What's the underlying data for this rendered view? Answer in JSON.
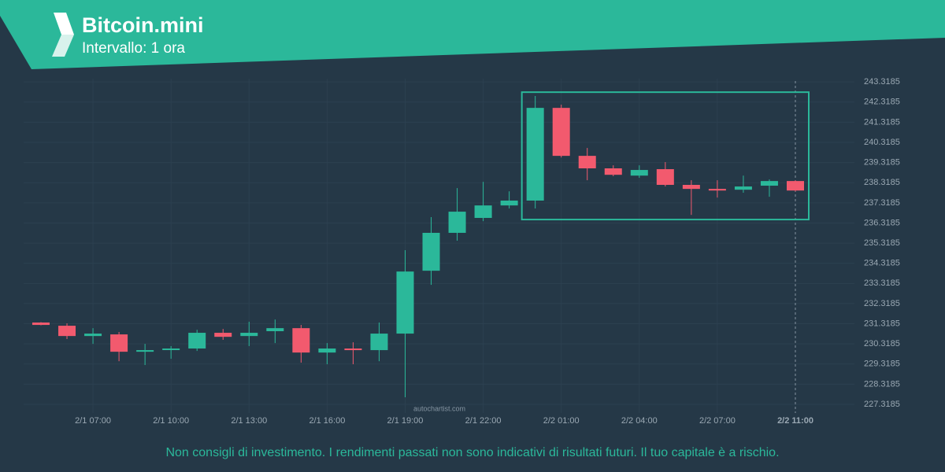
{
  "chart_data": {
    "type": "candlestick",
    "title": "Bitcoin.mini",
    "subtitle": "Intervallo: 1 ora",
    "watermark": "autochartist.com",
    "disclaimer": "Non consigli di investimento. I rendimenti passati non sono indicativi di risultati futuri. Il tuo capitale è a rischio.",
    "categories": [
      null,
      null,
      "2/1 07:00",
      null,
      null,
      "2/1 10:00",
      null,
      null,
      "2/1 13:00",
      null,
      null,
      "2/1 16:00",
      null,
      null,
      "2/1 19:00",
      null,
      null,
      "2/1 22:00",
      null,
      null,
      "2/2 01:00",
      null,
      null,
      "2/2 04:00",
      null,
      null,
      "2/2 07:00",
      null,
      null,
      "2/2 11:00"
    ],
    "open": [
      231.38,
      231.22,
      230.71,
      230.79,
      229.93,
      230.05,
      230.09,
      230.87,
      230.71,
      230.95,
      231.1,
      229.89,
      230.09,
      230.01,
      230.83,
      233.95,
      235.83,
      236.57,
      237.19,
      237.43,
      242.03,
      239.65,
      239.03,
      238.67,
      238.99,
      238.21,
      238.01,
      237.97,
      238.17,
      238.4
    ],
    "high": [
      231.4,
      231.34,
      231.1,
      230.91,
      230.32,
      230.21,
      231.02,
      231.06,
      231.42,
      231.53,
      231.26,
      230.36,
      230.4,
      231.38,
      234.97,
      236.61,
      238.05,
      238.36,
      237.89,
      242.62,
      242.19,
      240.04,
      239.18,
      239.18,
      239.34,
      238.44,
      238.44,
      238.67,
      238.48,
      238.44
    ],
    "low": [
      231.24,
      230.56,
      230.32,
      229.46,
      229.27,
      229.58,
      229.97,
      230.52,
      230.21,
      230.36,
      229.39,
      229.31,
      229.31,
      229.46,
      227.67,
      233.25,
      235.44,
      236.41,
      237.04,
      237.04,
      239.57,
      238.44,
      238.64,
      238.56,
      238.13,
      236.72,
      237.58,
      237.82,
      237.62,
      237.89
    ],
    "close": [
      231.26,
      230.71,
      230.83,
      229.93,
      230.01,
      230.09,
      230.87,
      230.67,
      230.87,
      231.1,
      229.89,
      230.09,
      230.01,
      230.83,
      233.91,
      235.83,
      236.88,
      237.19,
      237.43,
      242.03,
      239.65,
      239.03,
      238.71,
      238.95,
      238.21,
      238.01,
      237.93,
      238.13,
      238.4,
      237.93
    ],
    "up_color": "#2bb89a",
    "down_color": "#f25a6e",
    "pattern": {
      "high": 242.81,
      "low": 236.49,
      "color": "#2bb89a"
    },
    "ylim": [
      226.89,
      243.48
    ],
    "yticks": [
      227.3185,
      228.3185,
      229.3185,
      230.3185,
      231.3185,
      232.3185,
      233.3185,
      234.3185,
      235.3185,
      236.3185,
      237.3185,
      238.3185,
      239.3185,
      240.3185,
      241.3185,
      242.3185,
      243.3185
    ],
    "grid": true
  }
}
